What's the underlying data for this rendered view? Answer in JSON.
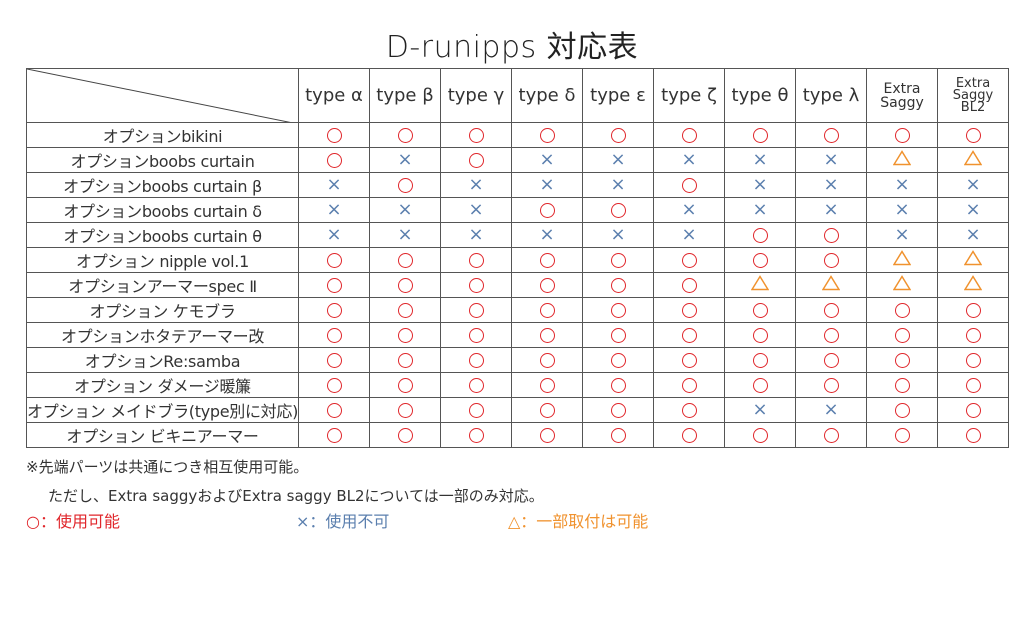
{
  "title": "D-runipps 対応表",
  "columns": [
    {
      "label": "type α"
    },
    {
      "label": "type β"
    },
    {
      "label": "type γ"
    },
    {
      "label": "type δ"
    },
    {
      "label": "type ε"
    },
    {
      "label": "type ζ"
    },
    {
      "label": "type θ"
    },
    {
      "label": "type λ"
    },
    {
      "label_lines": [
        "Extra",
        "Saggy"
      ]
    },
    {
      "label_lines": [
        "Extra",
        "Saggy",
        "BL2"
      ]
    }
  ],
  "rows": [
    {
      "label": "オプションbikini",
      "marks": [
        "o",
        "o",
        "o",
        "o",
        "o",
        "o",
        "o",
        "o",
        "o",
        "o"
      ]
    },
    {
      "label": "オプションboobs curtain",
      "marks": [
        "o",
        "x",
        "o",
        "x",
        "x",
        "x",
        "x",
        "x",
        "t",
        "t"
      ]
    },
    {
      "label": "オプションboobs curtain β",
      "marks": [
        "x",
        "o",
        "x",
        "x",
        "x",
        "o",
        "x",
        "x",
        "x",
        "x"
      ]
    },
    {
      "label": "オプションboobs curtain δ",
      "marks": [
        "x",
        "x",
        "x",
        "o",
        "o",
        "x",
        "x",
        "x",
        "x",
        "x"
      ]
    },
    {
      "label": "オプションboobs curtain θ",
      "marks": [
        "x",
        "x",
        "x",
        "x",
        "x",
        "x",
        "o",
        "o",
        "x",
        "x"
      ]
    },
    {
      "label": "オプション nipple vol.1",
      "marks": [
        "o",
        "o",
        "o",
        "o",
        "o",
        "o",
        "o",
        "o",
        "t",
        "t"
      ]
    },
    {
      "label": "オプションアーマーspec Ⅱ",
      "marks": [
        "o",
        "o",
        "o",
        "o",
        "o",
        "o",
        "t",
        "t",
        "t",
        "t"
      ]
    },
    {
      "label": "オプション ケモブラ",
      "marks": [
        "o",
        "o",
        "o",
        "o",
        "o",
        "o",
        "o",
        "o",
        "o",
        "o"
      ]
    },
    {
      "label": "オプションホタテアーマー改",
      "marks": [
        "o",
        "o",
        "o",
        "o",
        "o",
        "o",
        "o",
        "o",
        "o",
        "o"
      ]
    },
    {
      "label": "オプションRe:samba",
      "marks": [
        "o",
        "o",
        "o",
        "o",
        "o",
        "o",
        "o",
        "o",
        "o",
        "o"
      ]
    },
    {
      "label": "オプション ダメージ暖簾",
      "marks": [
        "o",
        "o",
        "o",
        "o",
        "o",
        "o",
        "o",
        "o",
        "o",
        "o"
      ]
    },
    {
      "label": "オプション メイドブラ(type別に対応)",
      "marks": [
        "o",
        "o",
        "o",
        "o",
        "o",
        "o",
        "x",
        "x",
        "o",
        "o"
      ]
    },
    {
      "label": "オプション ビキニアーマー",
      "marks": [
        "o",
        "o",
        "o",
        "o",
        "o",
        "o",
        "o",
        "o",
        "o",
        "o"
      ]
    }
  ],
  "notes": [
    "※先端パーツは共通につき相互使用可能。",
    "ただし、Extra saggyおよびExtra saggy BL2については一部のみ対応。"
  ],
  "legend": [
    {
      "symbol": "o",
      "text": "○：使用可能",
      "color": "#e0262b"
    },
    {
      "symbol": "x",
      "text": "×：使用不可",
      "color": "#5b7fae"
    },
    {
      "symbol": "t",
      "text": "△：一部取付は可能",
      "color": "#f0922e"
    }
  ],
  "colors": {
    "circle": "#e0262b",
    "cross": "#5b7fae",
    "triangle": "#f0922e",
    "grid": "#555555"
  }
}
